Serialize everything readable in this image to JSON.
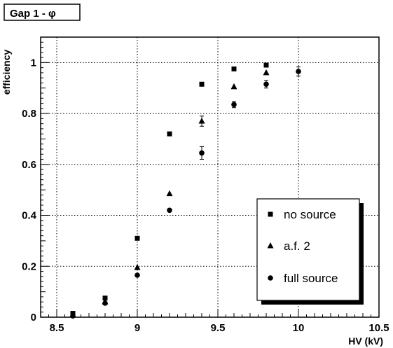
{
  "chart_data": {
    "type": "scatter",
    "title": "Gap 1 - φ",
    "xlabel": "HV (kV)",
    "ylabel": "efficiency",
    "xlim": [
      8.4,
      10.5
    ],
    "ylim": [
      0,
      1.1
    ],
    "x_ticks": [
      "8.5",
      "9",
      "9.5",
      "10",
      "10.5"
    ],
    "y_ticks": [
      "0",
      "0.2",
      "0.4",
      "0.6",
      "0.8",
      "1"
    ],
    "grid": true,
    "legend_position": "bottom-right",
    "series": [
      {
        "name": "no source",
        "marker": "square",
        "points": [
          {
            "x": 8.6,
            "y": 0.015
          },
          {
            "x": 8.8,
            "y": 0.075
          },
          {
            "x": 9.0,
            "y": 0.31
          },
          {
            "x": 9.2,
            "y": 0.72
          },
          {
            "x": 9.4,
            "y": 0.915
          },
          {
            "x": 9.6,
            "y": 0.975
          },
          {
            "x": 9.8,
            "y": 0.99
          }
        ]
      },
      {
        "name": "a.f. 2",
        "marker": "triangle",
        "points": [
          {
            "x": 8.6,
            "y": 0.01
          },
          {
            "x": 8.8,
            "y": 0.06
          },
          {
            "x": 9.0,
            "y": 0.195
          },
          {
            "x": 9.2,
            "y": 0.485
          },
          {
            "x": 9.4,
            "y": 0.77,
            "err": 0.02
          },
          {
            "x": 9.6,
            "y": 0.905
          },
          {
            "x": 9.8,
            "y": 0.96
          }
        ]
      },
      {
        "name": "full source",
        "marker": "circle",
        "points": [
          {
            "x": 8.6,
            "y": 0.005
          },
          {
            "x": 8.8,
            "y": 0.055
          },
          {
            "x": 9.0,
            "y": 0.165
          },
          {
            "x": 9.2,
            "y": 0.42
          },
          {
            "x": 9.4,
            "y": 0.645,
            "err": 0.025
          },
          {
            "x": 9.6,
            "y": 0.835,
            "err": 0.012
          },
          {
            "x": 9.8,
            "y": 0.915,
            "err": 0.015
          },
          {
            "x": 10.0,
            "y": 0.965,
            "err": 0.018
          }
        ]
      }
    ]
  }
}
